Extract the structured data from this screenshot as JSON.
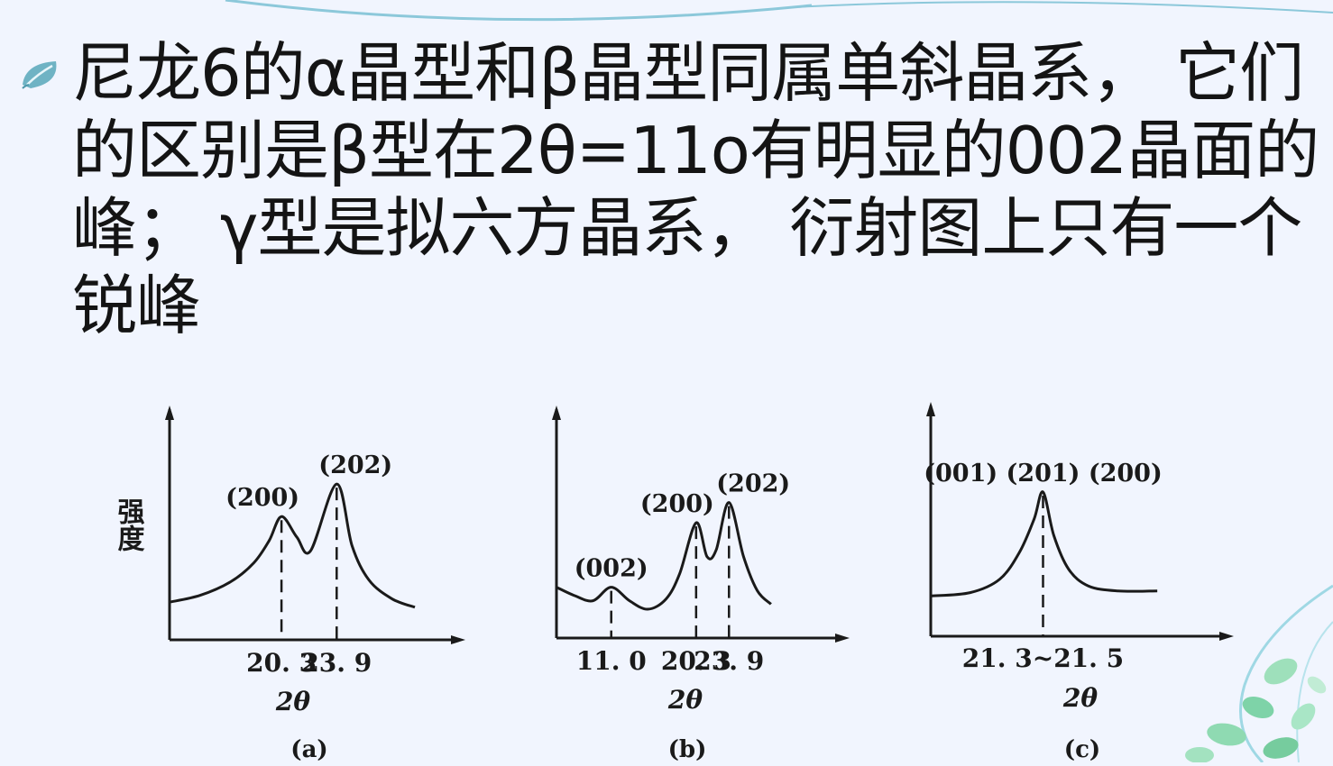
{
  "text": {
    "line1": "尼龙6的α晶型和β晶型同属单斜晶系， 它们",
    "line2": "的区别是β型在2θ=11ο有明显的002晶面的",
    "line3": "峰； γ型是拟六方晶系， 衍射图上只有一个",
    "line4": "锐峰"
  },
  "colors": {
    "background": "#f1f5fe",
    "text": "#141414",
    "accent": "#6fb3c4",
    "leaf": "#7ed3a8"
  },
  "icons": {
    "bullet": "leaf-bullet-icon",
    "corner": "leaf-vine-decoration"
  },
  "chart_data": [
    {
      "type": "line",
      "ylabel": "强度",
      "xlabel": "2θ",
      "caption": "(a)",
      "ticks": [
        "20. 3",
        "23. 9"
      ],
      "tick_x": [
        20.3,
        23.9
      ],
      "xlim": [
        13.0,
        29.0
      ],
      "ylim": [
        0,
        1
      ],
      "peaks": [
        {
          "label": "(200)",
          "x": 20.3,
          "y": 0.72
        },
        {
          "label": "(202)",
          "x": 23.9,
          "y": 0.91
        }
      ],
      "series": [
        {
          "x": [
            13.0,
            15.0,
            17.0,
            18.5,
            19.5,
            20.3,
            21.3,
            22.2,
            23.9,
            24.9,
            26.0,
            27.5,
            29.0
          ],
          "y": [
            0.22,
            0.26,
            0.34,
            0.45,
            0.58,
            0.72,
            0.6,
            0.52,
            0.91,
            0.55,
            0.35,
            0.24,
            0.19
          ]
        }
      ]
    },
    {
      "type": "line",
      "ylabel": "",
      "xlabel": "2θ",
      "caption": "(b)",
      "ticks": [
        "11. 0",
        "20. 3",
        "23. 9"
      ],
      "tick_x": [
        11.0,
        20.3,
        23.9
      ],
      "xlim": [
        5.0,
        30.0
      ],
      "ylim": [
        0,
        1
      ],
      "peaks": [
        {
          "label": "(002)",
          "x": 11.0,
          "y": 0.3
        },
        {
          "label": "(200)",
          "x": 20.3,
          "y": 0.68
        },
        {
          "label": "(202)",
          "x": 23.9,
          "y": 0.8
        }
      ],
      "series": [
        {
          "x": [
            5.0,
            7.0,
            9.0,
            11.0,
            13.0,
            15.0,
            17.0,
            18.5,
            20.3,
            21.5,
            22.5,
            23.9,
            25.5,
            27.0,
            28.5
          ],
          "y": [
            0.3,
            0.25,
            0.22,
            0.3,
            0.22,
            0.17,
            0.23,
            0.38,
            0.68,
            0.48,
            0.52,
            0.8,
            0.48,
            0.28,
            0.2
          ]
        }
      ]
    },
    {
      "type": "line",
      "ylabel": "",
      "xlabel": "2θ",
      "caption": "(c)",
      "ticks": [
        "21. 3~21. 5"
      ],
      "tick_x": [
        21.4
      ],
      "xlim": [
        10.0,
        35.0
      ],
      "ylim": [
        0,
        1
      ],
      "peaks": [
        {
          "label": "(001) (201) (200)",
          "x": 21.4,
          "y": 0.86
        }
      ],
      "series": [
        {
          "x": [
            10.0,
            14.0,
            17.0,
            19.0,
            20.5,
            21.4,
            22.5,
            24.0,
            26.0,
            29.0,
            33.0
          ],
          "y": [
            0.24,
            0.26,
            0.34,
            0.5,
            0.7,
            0.86,
            0.6,
            0.4,
            0.3,
            0.27,
            0.27
          ]
        }
      ]
    }
  ]
}
